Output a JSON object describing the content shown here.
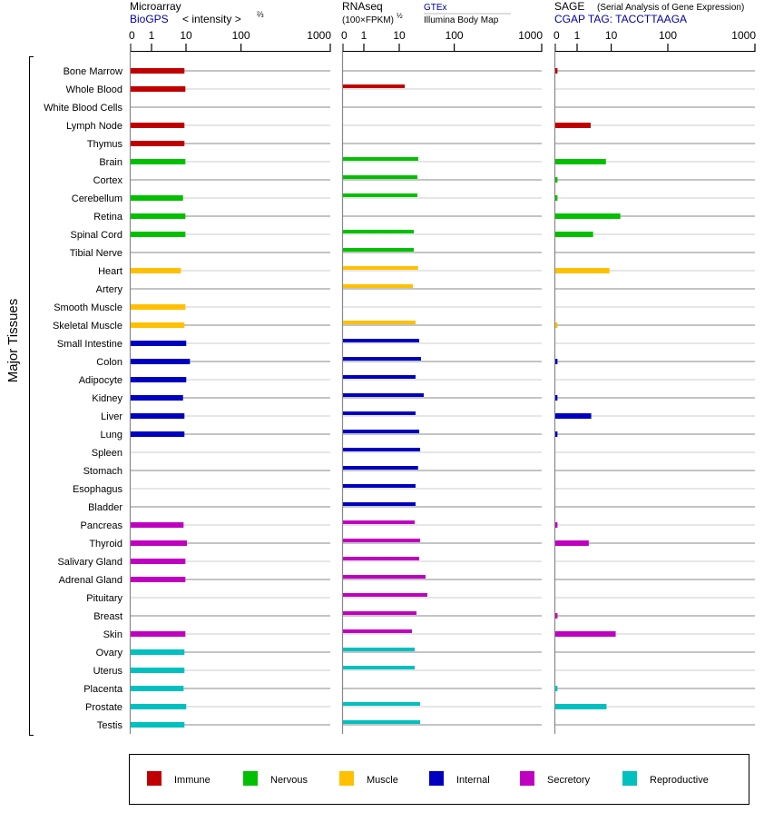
{
  "chart_data": {
    "type": "bar",
    "orientation": "horizontal",
    "ylabel": "Major Tissues",
    "categories_colors": {
      "Immune": "#c00000",
      "Nervous": "#00c000",
      "Muscle": "#ffc000",
      "Internal": "#0000c0",
      "Secretory": "#c000c0",
      "Reproductive": "#00c0c0"
    },
    "legend": {
      "placement": "bottom",
      "items": [
        "Immune",
        "Nervous",
        "Muscle",
        "Internal",
        "Secretory",
        "Reproductive"
      ]
    },
    "panels": [
      {
        "title": "Microarray",
        "source": "BioGPS",
        "unit_label": "< intensity >",
        "unit_exp": "⅔",
        "ticks": [
          "0",
          "1",
          "10",
          "100",
          "1000"
        ]
      },
      {
        "title": "RNAseq",
        "unit_label": "(100×FPKM)",
        "unit_exp": "½",
        "source": "GTEx",
        "source2": "Illumina Body Map",
        "ticks": [
          "0",
          "1",
          "10",
          "100",
          "1000"
        ]
      },
      {
        "title": "SAGE",
        "subtitle": "(Serial Analysis of Gene Expression)",
        "source": "CGAP TAG: TACCTTAAGA",
        "ticks": [
          "0",
          "1",
          "10",
          "100",
          "1000"
        ]
      }
    ],
    "tissues": [
      {
        "name": "Bone Marrow",
        "cat": "Immune",
        "values": [
          9.0,
          null,
          0.1
        ]
      },
      {
        "name": "Whole Blood",
        "cat": "Immune",
        "values": [
          9.6,
          12.6,
          null
        ]
      },
      {
        "name": "White Blood Cells",
        "cat": "Immune",
        "values": [
          null,
          null,
          null
        ]
      },
      {
        "name": "Lymph Node",
        "cat": "Immune",
        "values": [
          9.0,
          null,
          2.5
        ]
      },
      {
        "name": "Thymus",
        "cat": "Immune",
        "values": [
          9.0,
          null,
          null
        ]
      },
      {
        "name": "Brain",
        "cat": "Nervous",
        "values": [
          9.6,
          22.2,
          7.0
        ]
      },
      {
        "name": "Cortex",
        "cat": "Nervous",
        "values": [
          null,
          21.4,
          0.1
        ]
      },
      {
        "name": "Cerebellum",
        "cat": "Nervous",
        "values": [
          8.2,
          21.4,
          0.1
        ]
      },
      {
        "name": "Retina",
        "cat": "Nervous",
        "values": [
          9.6,
          null,
          14.5
        ]
      },
      {
        "name": "Spinal Cord",
        "cat": "Nervous",
        "values": [
          9.6,
          18.4,
          2.95
        ]
      },
      {
        "name": "Tibial Nerve",
        "cat": "Nervous",
        "values": [
          null,
          18.4,
          null
        ]
      },
      {
        "name": "Heart",
        "cat": "Muscle",
        "values": [
          7.1,
          22.0,
          8.9
        ]
      },
      {
        "name": "Artery",
        "cat": "Muscle",
        "values": [
          null,
          17.7,
          null
        ]
      },
      {
        "name": "Smooth Muscle",
        "cat": "Muscle",
        "values": [
          9.6,
          null,
          null
        ]
      },
      {
        "name": "Skeletal Muscle",
        "cat": "Muscle",
        "values": [
          9.0,
          19.8,
          0.1
        ]
      },
      {
        "name": "Small Intestine",
        "cat": "Internal",
        "values": [
          10.1,
          23.1,
          null
        ]
      },
      {
        "name": "Colon",
        "cat": "Internal",
        "values": [
          11.8,
          24.9,
          0.1
        ]
      },
      {
        "name": "Adipocyte",
        "cat": "Internal",
        "values": [
          10.1,
          19.8,
          null
        ]
      },
      {
        "name": "Kidney",
        "cat": "Internal",
        "values": [
          8.2,
          27.9,
          0.1
        ]
      },
      {
        "name": "Liver",
        "cat": "Internal",
        "values": [
          9.0,
          19.8,
          2.6
        ]
      },
      {
        "name": "Lung",
        "cat": "Internal",
        "values": [
          9.0,
          23.1,
          0.1
        ]
      },
      {
        "name": "Spleen",
        "cat": "Internal",
        "values": [
          null,
          24.0,
          null
        ]
      },
      {
        "name": "Stomach",
        "cat": "Internal",
        "values": [
          null,
          22.0,
          null
        ]
      },
      {
        "name": "Esophagus",
        "cat": "Internal",
        "values": [
          null,
          19.8,
          null
        ]
      },
      {
        "name": "Bladder",
        "cat": "Internal",
        "values": [
          null,
          19.8,
          null
        ]
      },
      {
        "name": "Pancreas",
        "cat": "Secretory",
        "values": [
          8.5,
          19.1,
          0.1
        ]
      },
      {
        "name": "Thyroid",
        "cat": "Secretory",
        "values": [
          10.4,
          24.0,
          2.2
        ]
      },
      {
        "name": "Salivary Gland",
        "cat": "Secretory",
        "values": [
          9.6,
          23.1,
          null
        ]
      },
      {
        "name": "Adrenal Gland",
        "cat": "Secretory",
        "values": [
          9.6,
          30.1,
          null
        ]
      },
      {
        "name": "Pituitary",
        "cat": "Secretory",
        "values": [
          null,
          32.5,
          null
        ]
      },
      {
        "name": "Breast",
        "cat": "Secretory",
        "values": [
          null,
          20.6,
          0.1
        ]
      },
      {
        "name": "Skin",
        "cat": "Secretory",
        "values": [
          9.6,
          17.0,
          12.0
        ]
      },
      {
        "name": "Ovary",
        "cat": "Reproductive",
        "values": [
          9.0,
          19.1,
          null
        ]
      },
      {
        "name": "Uterus",
        "cat": "Reproductive",
        "values": [
          9.0,
          19.1,
          null
        ]
      },
      {
        "name": "Placenta",
        "cat": "Reproductive",
        "values": [
          8.5,
          null,
          0.1
        ]
      },
      {
        "name": "Prostate",
        "cat": "Reproductive",
        "values": [
          10.1,
          24.0,
          7.3
        ]
      },
      {
        "name": "Testis",
        "cat": "Reproductive",
        "values": [
          9.0,
          24.0,
          null
        ]
      }
    ]
  }
}
